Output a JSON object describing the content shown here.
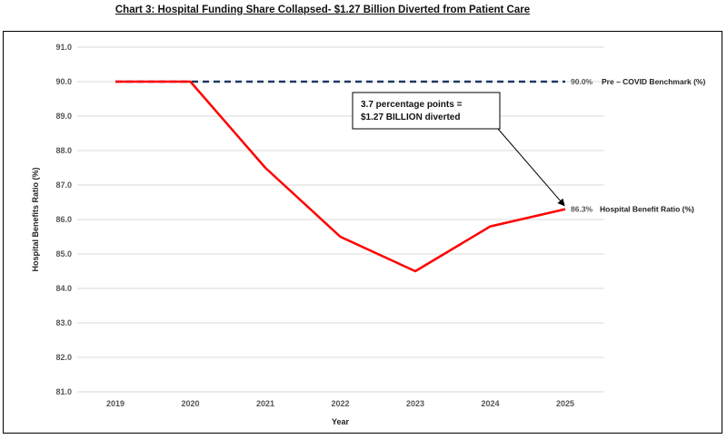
{
  "chart_data": {
    "type": "line",
    "title": "Chart 3: Hospital Funding Share Collapsed- $1.27 Billion Diverted from Patient Care",
    "xlabel": "Year",
    "ylabel": "Hospital Benefits Ratio (%)",
    "categories": [
      "2019",
      "2020",
      "2021",
      "2022",
      "2023",
      "2024",
      "2025"
    ],
    "ylim": [
      81.0,
      91.0
    ],
    "yticks": [
      "81.0",
      "82.0",
      "83.0",
      "84.0",
      "85.0",
      "86.0",
      "87.0",
      "88.0",
      "89.0",
      "90.0",
      "91.0"
    ],
    "grid": true,
    "series": [
      {
        "name": "Pre – COVID Benchmark (%)",
        "values": [
          90.0,
          90.0,
          90.0,
          90.0,
          90.0,
          90.0,
          90.0
        ],
        "color": "#1f3864",
        "style": "dashed",
        "end_label": "90.0%"
      },
      {
        "name": "Hospital Benefit Ratio (%)",
        "values": [
          90.0,
          90.0,
          87.5,
          85.5,
          84.5,
          85.8,
          86.3
        ],
        "color": "#ff0000",
        "style": "solid",
        "end_label": "86.3%"
      }
    ],
    "annotation": {
      "lines": [
        "3.7 percentage points =",
        "$1.27 BILLION diverted"
      ]
    }
  }
}
